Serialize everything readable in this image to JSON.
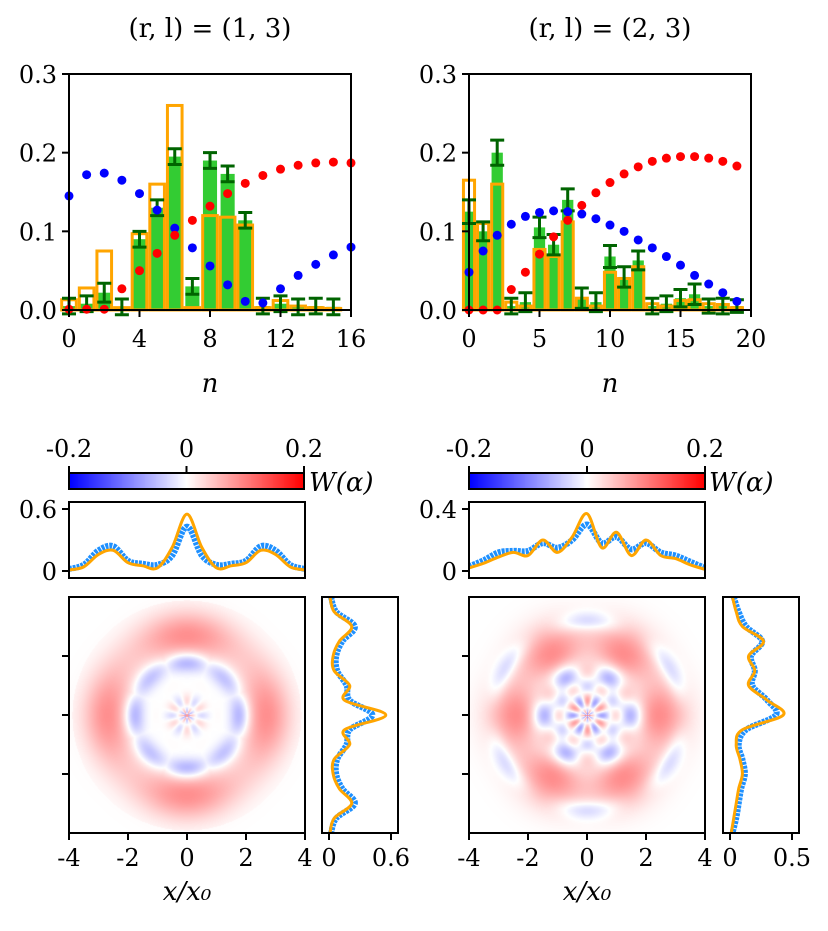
{
  "chart_data": [
    {
      "type": "bar",
      "title": "(r, l) = (1, 3)",
      "xlabel": "n",
      "xlim": [
        0,
        16
      ],
      "ylim": [
        0,
        0.3
      ],
      "xticks": [
        "0",
        "4",
        "8",
        "12",
        "16"
      ],
      "yticks": [
        "0.0",
        "0.1",
        "0.2",
        "0.3"
      ],
      "bars_measured": {
        "color": "#33cc33",
        "error_color": "#006400",
        "n": [
          0,
          1,
          2,
          3,
          4,
          5,
          6,
          7,
          8,
          9,
          10,
          11,
          12,
          13,
          14,
          15
        ],
        "values": [
          0.005,
          0.008,
          0.022,
          0.004,
          0.09,
          0.13,
          0.195,
          0.03,
          0.19,
          0.173,
          0.114,
          0.005,
          0.008,
          0.004,
          0.005,
          0.004
        ],
        "errors": [
          0.01,
          0.01,
          0.012,
          0.01,
          0.01,
          0.01,
          0.01,
          0.01,
          0.01,
          0.01,
          0.01,
          0.01,
          0.01,
          0.01,
          0.01,
          0.01
        ]
      },
      "bars_theory": {
        "color": "#ffa500",
        "n": [
          0,
          1,
          2,
          3,
          4,
          5,
          6,
          7,
          8,
          9,
          10,
          11,
          12,
          13,
          14,
          15
        ],
        "values": [
          0.013,
          0.028,
          0.075,
          0.003,
          0.097,
          0.16,
          0.26,
          0.003,
          0.12,
          0.118,
          0.108,
          0.003,
          0.012,
          0.005,
          0.003,
          0.002
        ]
      },
      "points_blue": {
        "color": "#0000ff",
        "n": [
          0,
          1,
          2,
          3,
          4,
          5,
          6,
          7,
          8,
          9,
          10,
          11,
          12,
          13,
          14,
          15,
          16
        ],
        "values": [
          0.145,
          0.172,
          0.174,
          0.165,
          0.148,
          0.127,
          0.104,
          0.079,
          0.056,
          0.032,
          0.011,
          0.009,
          0.027,
          0.044,
          0.058,
          0.07,
          0.08
        ]
      },
      "points_red": {
        "color": "#ff0000",
        "n": [
          0,
          1,
          2,
          3,
          4,
          5,
          6,
          7,
          8,
          9,
          10,
          11,
          12,
          13,
          14,
          15,
          16
        ],
        "values": [
          0.001,
          0.001,
          0.001,
          0.027,
          0.05,
          0.072,
          0.095,
          0.114,
          0.132,
          0.148,
          0.161,
          0.171,
          0.179,
          0.184,
          0.187,
          0.188,
          0.187
        ]
      }
    },
    {
      "type": "bar",
      "title": "(r, l) = (2, 3)",
      "xlabel": "n",
      "xlim": [
        0,
        20
      ],
      "ylim": [
        0,
        0.3
      ],
      "xticks": [
        "0",
        "5",
        "10",
        "15",
        "20"
      ],
      "yticks": [
        "0.0",
        "0.1",
        "0.2",
        "0.3"
      ],
      "bars_measured": {
        "color": "#33cc33",
        "error_color": "#006400",
        "n": [
          0,
          1,
          2,
          3,
          4,
          5,
          6,
          7,
          8,
          9,
          10,
          11,
          12,
          13,
          14,
          15,
          16,
          17,
          18,
          19
        ],
        "values": [
          0.125,
          0.1,
          0.2,
          0.005,
          0.01,
          0.105,
          0.083,
          0.14,
          0.015,
          0.01,
          0.068,
          0.042,
          0.063,
          0.005,
          0.008,
          0.015,
          0.02,
          0.005,
          0.005,
          0.005
        ],
        "errors": [
          0.015,
          0.012,
          0.016,
          0.01,
          0.012,
          0.013,
          0.013,
          0.014,
          0.013,
          0.012,
          0.014,
          0.013,
          0.012,
          0.01,
          0.01,
          0.011,
          0.013,
          0.009,
          0.01,
          0.008
        ]
      },
      "bars_theory": {
        "color": "#ffa500",
        "n": [
          0,
          1,
          2,
          3,
          4,
          5,
          6,
          7,
          8,
          9,
          10,
          11,
          12,
          13,
          14,
          15,
          16,
          17,
          18,
          19
        ],
        "values": [
          0.165,
          0.11,
          0.16,
          0.01,
          0.005,
          0.077,
          0.068,
          0.112,
          0.015,
          0.005,
          0.048,
          0.04,
          0.055,
          0.008,
          0.005,
          0.012,
          0.013,
          0.008,
          0.007,
          0.003
        ]
      },
      "points_blue": {
        "color": "#0000ff",
        "n": [
          0,
          1,
          2,
          3,
          4,
          5,
          6,
          7,
          8,
          9,
          10,
          11,
          12,
          13,
          14,
          15,
          16,
          17,
          18,
          19
        ],
        "values": [
          0.048,
          0.075,
          0.095,
          0.109,
          0.119,
          0.124,
          0.126,
          0.125,
          0.122,
          0.116,
          0.108,
          0.1,
          0.089,
          0.079,
          0.068,
          0.057,
          0.044,
          0.033,
          0.022,
          0.011
        ]
      },
      "points_red": {
        "color": "#ff0000",
        "n": [
          0,
          1,
          2,
          3,
          4,
          5,
          6,
          7,
          8,
          9,
          10,
          11,
          12,
          13,
          14,
          15,
          16,
          17,
          18,
          19
        ],
        "values": [
          0,
          0,
          0,
          0.026,
          0.048,
          0.071,
          0.093,
          0.114,
          0.133,
          0.149,
          0.162,
          0.173,
          0.182,
          0.189,
          0.193,
          0.195,
          0.195,
          0.193,
          0.189,
          0.183
        ]
      }
    },
    {
      "type": "heatmap",
      "colorbar": {
        "label": "W(α)",
        "range": [
          -0.2,
          0.2
        ],
        "ticks": [
          "-0.2",
          "0",
          "0.2"
        ],
        "colormap": "bwr"
      },
      "xlabel": "x/x₀",
      "xlim": [
        -4,
        4
      ],
      "xticks": [
        "-4",
        "-2",
        "0",
        "2",
        "4"
      ],
      "top_marginal": {
        "ylim": [
          0,
          0.6
        ],
        "yticks": [
          "0",
          "0.6"
        ],
        "x": [
          -4,
          -3.5,
          -3,
          -2.5,
          -2,
          -1.5,
          -1,
          -0.5,
          0,
          0.5,
          1,
          1.5,
          2,
          2.5,
          3,
          3.5,
          4
        ],
        "theory": [
          0.01,
          0.04,
          0.16,
          0.2,
          0.08,
          0.05,
          0.03,
          0.23,
          0.55,
          0.23,
          0.03,
          0.05,
          0.08,
          0.2,
          0.16,
          0.04,
          0.01
        ],
        "measured": [
          0.02,
          0.06,
          0.2,
          0.24,
          0.1,
          0.07,
          0.06,
          0.15,
          0.43,
          0.15,
          0.06,
          0.07,
          0.1,
          0.24,
          0.2,
          0.06,
          0.02
        ]
      },
      "right_marginal": {
        "xlim": [
          0,
          0.6
        ],
        "xticks": [
          "0",
          "0.6"
        ],
        "y": [
          4,
          3.5,
          3,
          2.5,
          2,
          1.5,
          1,
          0.5,
          0,
          -0.5,
          -1,
          -1.5,
          -2,
          -2.5,
          -3,
          -3.5,
          -4
        ],
        "theory": [
          0.01,
          0.05,
          0.22,
          0.1,
          0.04,
          0.05,
          0.2,
          0.15,
          0.55,
          0.15,
          0.2,
          0.05,
          0.04,
          0.1,
          0.22,
          0.05,
          0.01
        ],
        "measured": [
          0.02,
          0.07,
          0.25,
          0.13,
          0.07,
          0.08,
          0.17,
          0.2,
          0.42,
          0.2,
          0.17,
          0.08,
          0.07,
          0.13,
          0.25,
          0.07,
          0.02
        ]
      }
    },
    {
      "type": "heatmap",
      "colorbar": {
        "label": "W(α)",
        "range": [
          -0.2,
          0.2
        ],
        "ticks": [
          "-0.2",
          "0",
          "0.2"
        ],
        "colormap": "bwr"
      },
      "xlabel": "x/x₀",
      "xlim": [
        -4,
        4
      ],
      "xticks": [
        "-4",
        "-2",
        "0",
        "2",
        "4"
      ],
      "top_marginal": {
        "ylim": [
          0,
          0.4
        ],
        "yticks": [
          "0",
          "0.4"
        ],
        "x": [
          -4,
          -3.5,
          -3,
          -2.5,
          -2,
          -1.5,
          -1,
          -0.5,
          0,
          0.5,
          1,
          1.5,
          2,
          2.5,
          3,
          3.5,
          4
        ],
        "theory": [
          0.02,
          0.05,
          0.09,
          0.12,
          0.1,
          0.2,
          0.12,
          0.22,
          0.37,
          0.15,
          0.25,
          0.1,
          0.2,
          0.1,
          0.08,
          0.04,
          0.01
        ],
        "measured": [
          0.03,
          0.07,
          0.12,
          0.13,
          0.13,
          0.18,
          0.15,
          0.2,
          0.3,
          0.18,
          0.22,
          0.14,
          0.18,
          0.12,
          0.1,
          0.06,
          0.02
        ]
      },
      "right_marginal": {
        "xlim": [
          0,
          0.5
        ],
        "xticks": [
          "0",
          "0.5"
        ],
        "y": [
          4,
          3.5,
          3,
          2.5,
          2,
          1.5,
          1,
          0.5,
          0,
          -0.5,
          -1,
          -1.5,
          -2,
          -2.5,
          -3,
          -3.5,
          -4
        ],
        "theory": [
          0.02,
          0.05,
          0.1,
          0.27,
          0.15,
          0.2,
          0.15,
          0.3,
          0.43,
          0.1,
          0.05,
          0.08,
          0.1,
          0.07,
          0.05,
          0.03,
          0.01
        ],
        "measured": [
          0.03,
          0.07,
          0.13,
          0.26,
          0.17,
          0.2,
          0.18,
          0.3,
          0.37,
          0.13,
          0.07,
          0.1,
          0.12,
          0.09,
          0.07,
          0.05,
          0.02
        ]
      }
    }
  ],
  "colors": {
    "measured_line": "#1e90ff",
    "theory_line": "#ffa500"
  }
}
